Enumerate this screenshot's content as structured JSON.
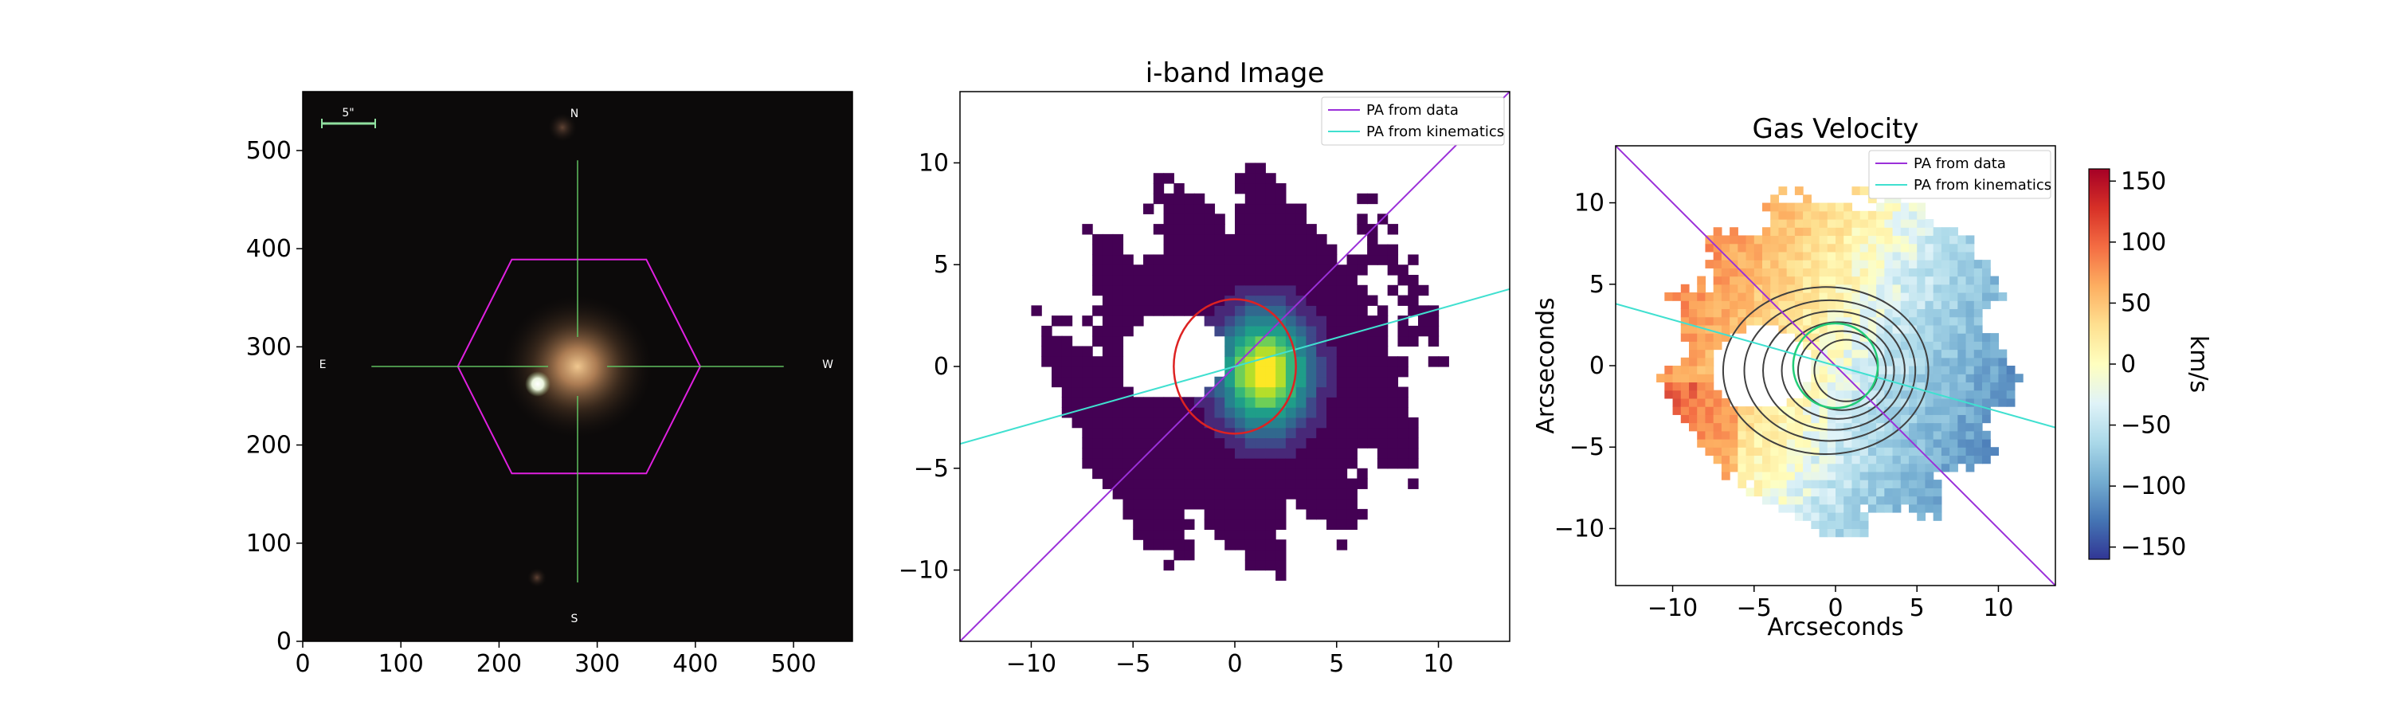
{
  "figure": {
    "panels": [
      "sdss-image",
      "i-band-image",
      "gas-velocity"
    ]
  },
  "colors": {
    "pa_data": "#9b30d9",
    "pa_kinematics": "#40e0d0",
    "hexagon": "#e020e0",
    "crosshair": "#60c060",
    "ellipse_iband": "#dd2222",
    "ellipse_gas": "#22cc77",
    "contours": "#404040"
  },
  "chart_data": [
    {
      "type": "heatmap",
      "panel": "sdss-image",
      "title": "",
      "xlabel": "",
      "ylabel": "",
      "xlim": [
        0,
        560
      ],
      "ylim": [
        560,
        0
      ],
      "xticks": [
        0,
        100,
        200,
        300,
        400,
        500
      ],
      "yticks": [
        0,
        100,
        200,
        300,
        400,
        500
      ],
      "xtick_labels": [
        "0",
        "100",
        "200",
        "300",
        "400",
        "500"
      ],
      "ytick_labels": [
        "0",
        "100",
        "200",
        "300",
        "400",
        "500"
      ],
      "scale_bar_label": "5\"",
      "compass": {
        "north": "N",
        "south": "S",
        "east": "E",
        "west": "W"
      },
      "hexagon_vertices": [
        [
          213,
          171
        ],
        [
          350,
          171
        ],
        [
          405,
          280
        ],
        [
          350,
          389
        ],
        [
          213,
          389
        ],
        [
          158,
          280
        ]
      ],
      "galaxy_center": [
        280,
        280
      ],
      "companion_star": [
        240,
        298
      ]
    },
    {
      "type": "heatmap",
      "panel": "i-band-image",
      "title": "i-band Image",
      "xlabel": "",
      "ylabel": "",
      "xlim": [
        -13.5,
        13.5
      ],
      "ylim": [
        13.5,
        -13.5
      ],
      "xticks": [
        -10,
        -5,
        0,
        5,
        10
      ],
      "yticks": [
        -10,
        -5,
        0,
        5,
        10
      ],
      "xtick_labels": [
        "−10",
        "−5",
        "0",
        "5",
        "10"
      ],
      "ytick_labels": [
        "−10",
        "−5",
        "0",
        "5",
        "10"
      ],
      "colormap": "viridis",
      "legend": {
        "position": "top-right",
        "entries": [
          "PA from data",
          "PA from kinematics"
        ]
      },
      "pa_data_line": [
        [
          -13.5,
          -13.5
        ],
        [
          13.5,
          13.5
        ]
      ],
      "pa_kinematics_line": [
        [
          -13.5,
          -3.8
        ],
        [
          13.5,
          3.8
        ]
      ],
      "ellipse": {
        "cx": 0.0,
        "cy": 0.0,
        "rx": 3.0,
        "ry": 3.3
      }
    },
    {
      "type": "heatmap",
      "panel": "gas-velocity",
      "title": "Gas Velocity",
      "xlabel": "Arcseconds",
      "ylabel": "Arcseconds",
      "xlim": [
        -13.5,
        13.5
      ],
      "ylim": [
        -13.5,
        13.5
      ],
      "xticks": [
        -10,
        -5,
        0,
        5,
        10
      ],
      "yticks": [
        -10,
        -5,
        0,
        5,
        10
      ],
      "xtick_labels": [
        "−10",
        "−5",
        "0",
        "5",
        "10"
      ],
      "ytick_labels": [
        "−10",
        "−5",
        "0",
        "5",
        "10"
      ],
      "colormap": "RdYlBu_r",
      "colorbar": {
        "label": "km/s",
        "vmin": -160,
        "vmax": 160,
        "ticks": [
          150,
          100,
          50,
          0,
          -50,
          -100,
          -150
        ],
        "tick_labels": [
          "150",
          "100",
          "50",
          "0",
          "−50",
          "−100",
          "−150"
        ]
      },
      "legend": {
        "position": "top-right",
        "entries": [
          "PA from data",
          "PA from kinematics"
        ]
      },
      "pa_data_line": [
        [
          -13.5,
          13.5
        ],
        [
          13.5,
          -13.5
        ]
      ],
      "pa_kinematics_line": [
        [
          -13.5,
          3.8
        ],
        [
          13.5,
          -3.8
        ]
      ],
      "ellipse": {
        "cx": 0.0,
        "cy": 0.0,
        "rx": 2.6,
        "ry": 2.6
      }
    }
  ]
}
